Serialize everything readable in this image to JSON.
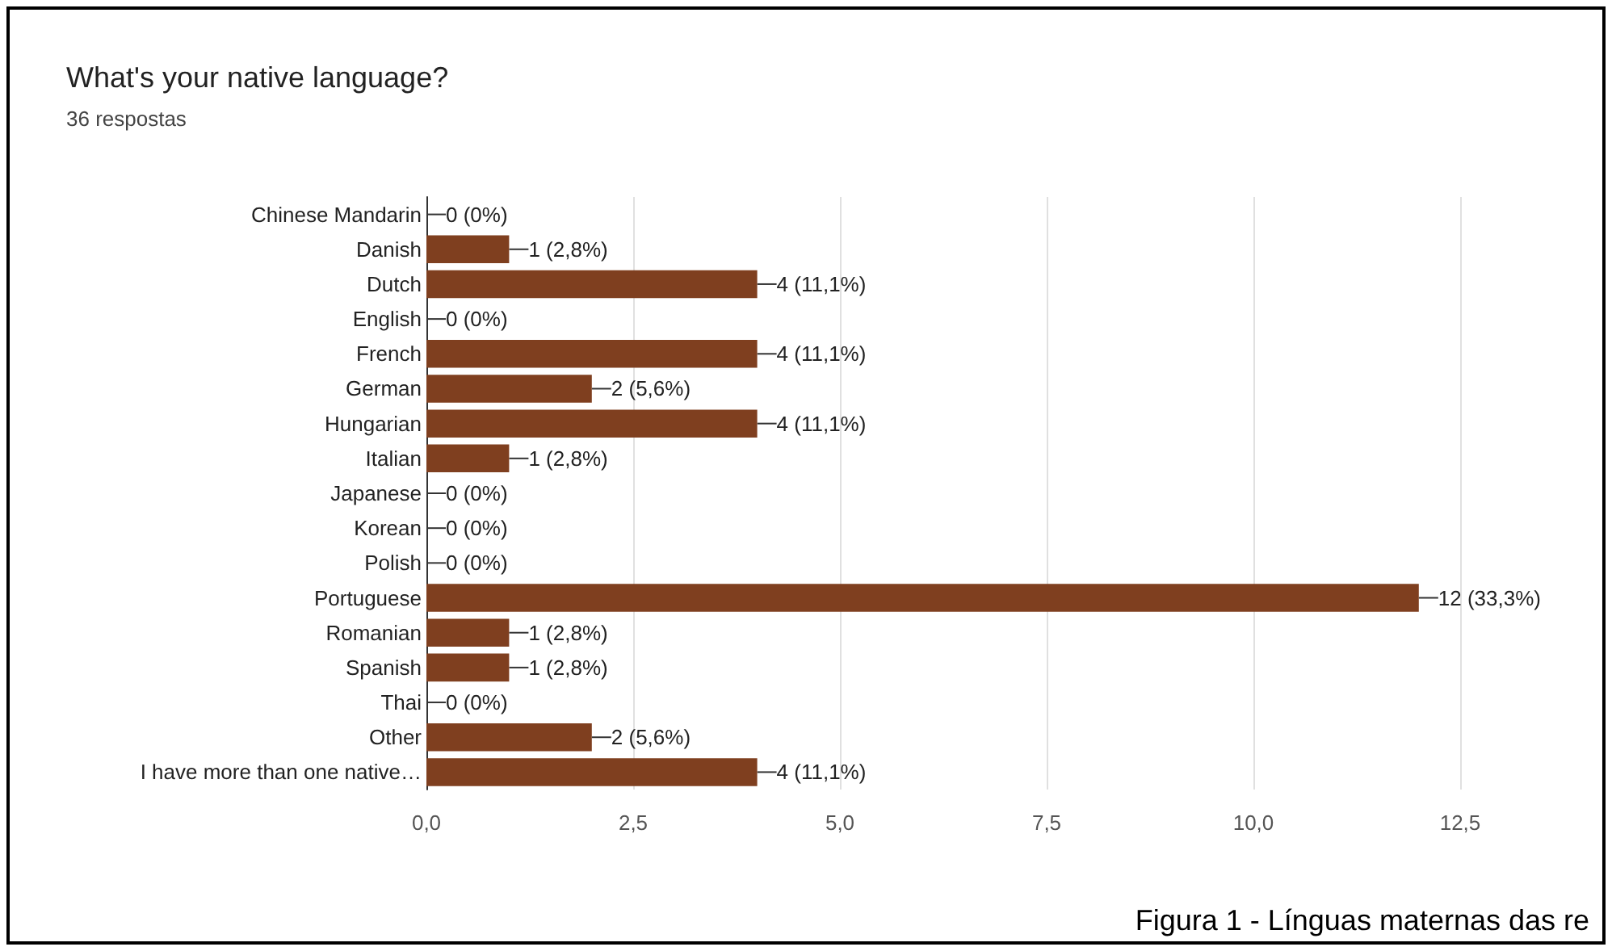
{
  "chart_data": {
    "type": "bar",
    "orientation": "horizontal",
    "title": "What's your native language?",
    "subtitle": "36 respostas",
    "categories": [
      "Chinese Mandarin",
      "Danish",
      "Dutch",
      "English",
      "French",
      "German",
      "Hungarian",
      "Italian",
      "Japanese",
      "Korean",
      "Polish",
      "Portuguese",
      "Romanian",
      "Spanish",
      "Thai",
      "Other",
      "I have more than one native…"
    ],
    "values": [
      0,
      1,
      4,
      0,
      4,
      2,
      4,
      1,
      0,
      0,
      0,
      12,
      1,
      1,
      0,
      2,
      4
    ],
    "value_labels": [
      "0 (0%)",
      "1 (2,8%)",
      "4 (11,1%)",
      "0 (0%)",
      "4 (11,1%)",
      "2 (5,6%)",
      "4 (11,1%)",
      "1 (2,8%)",
      "0 (0%)",
      "0 (0%)",
      "0 (0%)",
      "12 (33,3%)",
      "1 (2,8%)",
      "1 (2,8%)",
      "0 (0%)",
      "2 (5,6%)",
      "4 (11,1%)"
    ],
    "color": "#7f3f1f",
    "xlim": [
      0,
      12.5
    ],
    "xticks": [
      {
        "value": 0,
        "label": "0,0"
      },
      {
        "value": 2.5,
        "label": "2,5"
      },
      {
        "value": 5,
        "label": "5,0"
      },
      {
        "value": 7.5,
        "label": "7,5"
      },
      {
        "value": 10,
        "label": "10,0"
      },
      {
        "value": 12.5,
        "label": "12,5"
      }
    ],
    "grid": "x",
    "annotations": [
      "Figura 1 - Línguas maternas das re"
    ]
  }
}
